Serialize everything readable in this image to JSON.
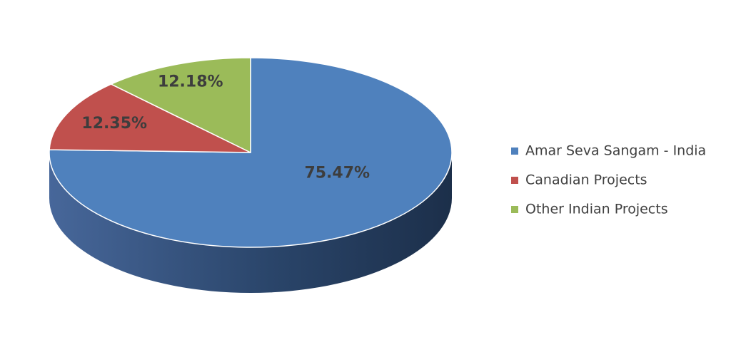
{
  "chart_data": {
    "type": "pie",
    "title": "",
    "legend_position": "right",
    "slices": [
      {
        "name": "Amar Seva Sangam - India",
        "value": 75.47,
        "label": "75.47%",
        "color": "#4f81bd",
        "side_color": "#3a5f8c"
      },
      {
        "name": "Canadian Projects",
        "value": 12.35,
        "label": "12.35%",
        "color": "#c0504d",
        "side_color": "#8e3b39"
      },
      {
        "name": "Other Indian Projects",
        "value": 12.18,
        "label": "12.18%",
        "color": "#9bbb59",
        "side_color": "#728a42"
      }
    ]
  }
}
